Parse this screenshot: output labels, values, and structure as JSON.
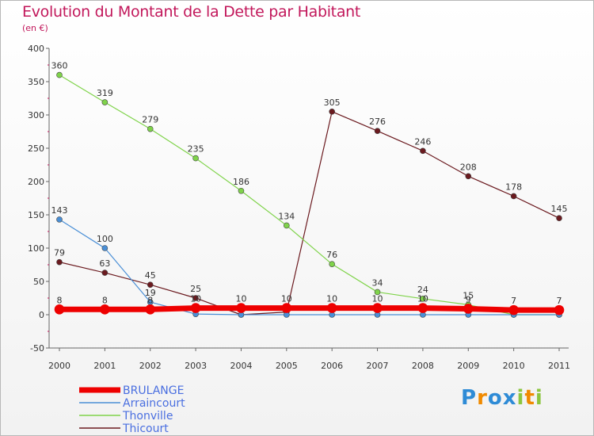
{
  "title": "Evolution du Montant de la Dette par Habitant",
  "unit": "(en €)",
  "logo": {
    "text": "Proxiti",
    "letters": [
      "P",
      "r",
      "o",
      "x",
      "i",
      "t",
      "i"
    ],
    "colors": [
      "#2e8bd6",
      "#f08a00",
      "#2e8bd6",
      "#2e8bd6",
      "#8cc63f",
      "#f08a00",
      "#8cc63f"
    ]
  },
  "chart_data": {
    "type": "line",
    "title": "Evolution du Montant de la Dette par Habitant",
    "ylabel": "(en €)",
    "xlabel": "",
    "ylim": [
      -50,
      400
    ],
    "yticks": [
      -50,
      0,
      50,
      100,
      150,
      200,
      250,
      300,
      350,
      400
    ],
    "x": [
      "2000",
      "2001",
      "2002",
      "2003",
      "2004",
      "2005",
      "2006",
      "2007",
      "2008",
      "2009",
      "2010",
      "2011"
    ],
    "series": [
      {
        "name": "Thicourt",
        "color": "#6b1a1f",
        "width": 1.2,
        "values": [
          79,
          63,
          45,
          25,
          0,
          4,
          305,
          276,
          246,
          208,
          178,
          145
        ],
        "labels": [
          "79",
          "63",
          "45",
          "25",
          "",
          "",
          "305",
          "276",
          "246",
          "208",
          "178",
          "145"
        ]
      },
      {
        "name": "Thonville",
        "color": "#7fd34a",
        "width": 1.2,
        "values": [
          360,
          319,
          279,
          235,
          186,
          134,
          76,
          34,
          24,
          15,
          0,
          0
        ],
        "labels": [
          "360",
          "319",
          "279",
          "235",
          "186",
          "134",
          "76",
          "34",
          "24",
          "15",
          "",
          ""
        ]
      },
      {
        "name": "Arraincourt",
        "color": "#4a8fd6",
        "width": 1.2,
        "values": [
          143,
          100,
          19,
          1,
          0,
          0,
          0,
          0,
          0,
          0,
          0,
          0
        ],
        "labels": [
          "143",
          "100",
          "19",
          "",
          "",
          "",
          "",
          "",
          "",
          "",
          "",
          ""
        ]
      },
      {
        "name": "BRULANGE",
        "color": "#ee0000",
        "width": 7,
        "values": [
          8,
          8,
          8,
          10,
          10,
          10,
          10,
          10,
          10,
          9,
          7,
          7
        ],
        "labels": [
          "8",
          "8",
          "8",
          "10",
          "10",
          "10",
          "10",
          "10",
          "10",
          "9",
          "7",
          "7"
        ]
      }
    ],
    "legend": [
      {
        "name": "BRULANGE",
        "color": "#ee0000",
        "text_color": "#4a6fe0"
      },
      {
        "name": "Arraincourt",
        "color": "#4a8fd6",
        "text_color": "#4a6fe0"
      },
      {
        "name": "Thonville",
        "color": "#7fd34a",
        "text_color": "#4a6fe0"
      },
      {
        "name": "Thicourt",
        "color": "#6b1a1f",
        "text_color": "#4a6fe0"
      }
    ],
    "legend_position": "bottom-left",
    "grid": false
  }
}
